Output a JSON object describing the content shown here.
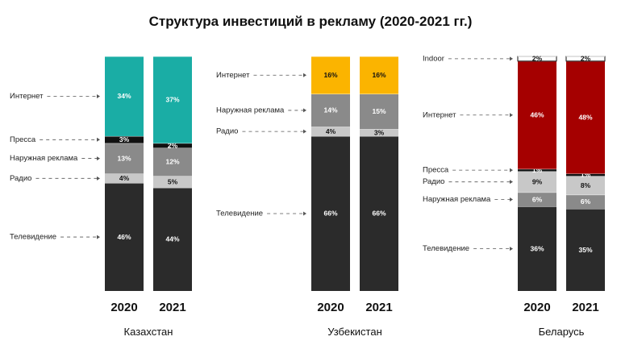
{
  "chart_data": {
    "title": "Структура инвестиций в рекламу (2020-2021 гг.)",
    "type": "bar",
    "stacked": true,
    "units": "%",
    "colors": {
      "Интернет_kz": "#1aada5",
      "Интернет_uz": "#fbb400",
      "Интернет_by": "#a50000",
      "Пресса": "#111111",
      "Наружная реклама": "#8a8a8a",
      "Радио": "#c8c8c8",
      "Телевидение": "#2b2b2b",
      "Indoor": "#ffffff"
    },
    "panels": [
      {
        "country": "Казахстан",
        "categories": [
          "2020",
          "2021"
        ],
        "series": [
          {
            "name": "Телевидение",
            "values": [
              46,
              44
            ],
            "labels": [
              "46%",
              "44%"
            ]
          },
          {
            "name": "Радио",
            "values": [
              4,
              5
            ],
            "labels": [
              "4%",
              "5%"
            ]
          },
          {
            "name": "Наружная реклама",
            "values": [
              13,
              12
            ],
            "labels": [
              "13%",
              "12%"
            ]
          },
          {
            "name": "Пресса",
            "values": [
              3,
              2
            ],
            "labels": [
              "3%",
              "2%"
            ]
          },
          {
            "name": "Интернет",
            "values": [
              34,
              37
            ],
            "labels": [
              "34%",
              "37%"
            ]
          }
        ]
      },
      {
        "country": "Узбекистан",
        "categories": [
          "2020",
          "2021"
        ],
        "series": [
          {
            "name": "Телевидение",
            "values": [
              66,
              66
            ],
            "labels": [
              "66%",
              "66%"
            ]
          },
          {
            "name": "Радио",
            "values": [
              4,
              3
            ],
            "labels": [
              "4%",
              "3%"
            ]
          },
          {
            "name": "Наружная реклама",
            "values": [
              14,
              15
            ],
            "labels": [
              "14%",
              "15%"
            ]
          },
          {
            "name": "Интернет",
            "values": [
              16,
              16
            ],
            "labels": [
              "16%",
              "16%"
            ]
          }
        ]
      },
      {
        "country": "Беларусь",
        "categories": [
          "2020",
          "2021"
        ],
        "series": [
          {
            "name": "Телевидение",
            "values": [
              36,
              35
            ],
            "labels": [
              "36%",
              "35%"
            ]
          },
          {
            "name": "Наружная реклама",
            "values": [
              6,
              6
            ],
            "labels": [
              "6%",
              "6%"
            ]
          },
          {
            "name": "Радио",
            "values": [
              9,
              8
            ],
            "labels": [
              "9%",
              "8%"
            ]
          },
          {
            "name": "Пресса",
            "values": [
              1,
              1
            ],
            "labels": [
              "1%",
              "1%"
            ]
          },
          {
            "name": "Интернет",
            "values": [
              46,
              48
            ],
            "labels": [
              "46%",
              "48%"
            ]
          },
          {
            "name": "Indoor",
            "values": [
              2,
              2
            ],
            "labels": [
              "2%",
              "2%"
            ]
          }
        ]
      }
    ]
  }
}
